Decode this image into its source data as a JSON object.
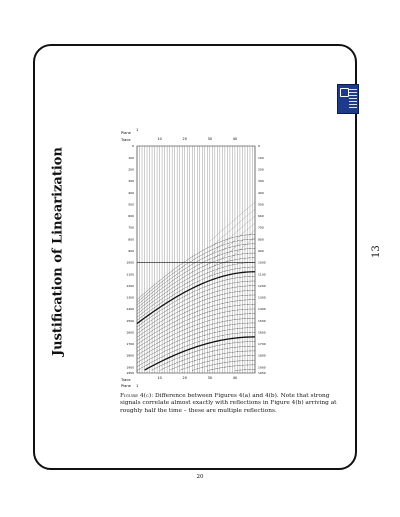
{
  "title": "Justification of Linearization",
  "slide_number": "13",
  "page_number": "20",
  "figure": {
    "label": "Figure 4(c):",
    "text": "Difference between Figures 4(a) and 4(b). Note that strong signals correlate almost exactly with reflections in Figure 4(b) arriving at roughly half the time – these are multiple reflections.",
    "top_labels": {
      "plane": "Plane",
      "plane_value": "1",
      "trace": "Trace"
    },
    "bottom_labels": {
      "trace": "Trace",
      "plane": "Plane",
      "plane_value": "1"
    },
    "trace_ticks": [
      "10",
      "20",
      "30",
      "40"
    ],
    "time_ticks_left": [
      "0",
      "100",
      "200",
      "300",
      "400",
      "500",
      "600",
      "700",
      "800",
      "900",
      "1000",
      "1100",
      "1200",
      "1300",
      "1400",
      "1500",
      "1600",
      "1700",
      "1800",
      "1900",
      "1950"
    ],
    "time_ticks_right": [
      "0",
      "100",
      "200",
      "300",
      "400",
      "500",
      "600",
      "700",
      "800",
      "900",
      "1000",
      "1100",
      "1200",
      "1300",
      "1400",
      "1500",
      "1600",
      "1700",
      "1800",
      "1900",
      "1950"
    ]
  }
}
